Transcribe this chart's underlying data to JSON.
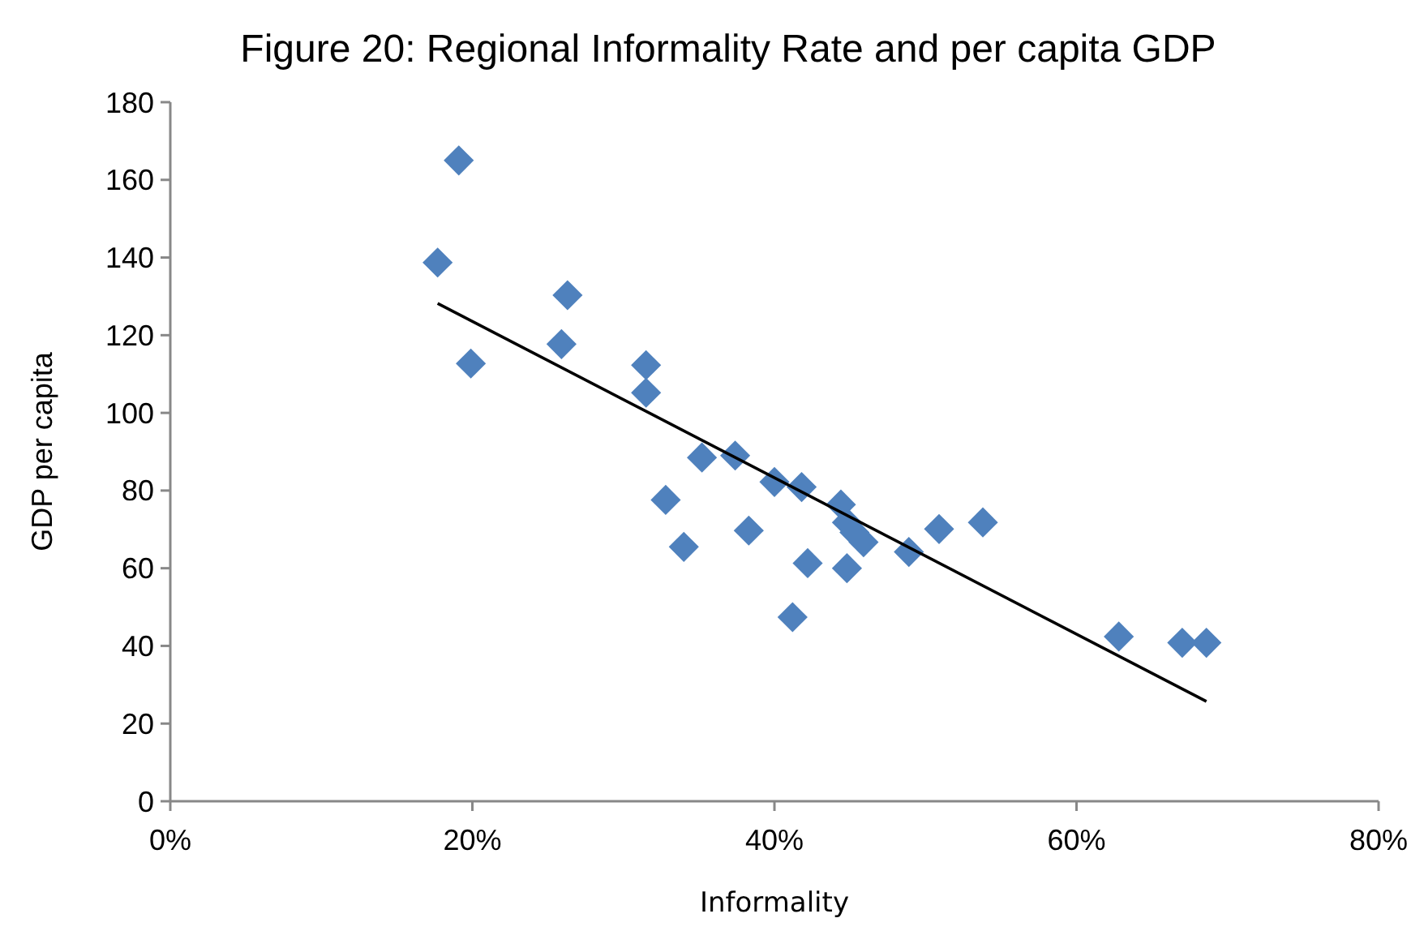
{
  "chart_data": {
    "type": "scatter",
    "title": "Figure 20: Regional Informality Rate and per capita GDP",
    "xlabel": "Informality",
    "ylabel": "GDP per capita",
    "xlim": [
      0,
      0.8
    ],
    "xticks": [
      {
        "value": 0,
        "label": "0%"
      },
      {
        "value": 0.2,
        "label": "20%"
      },
      {
        "value": 0.4,
        "label": "40%"
      },
      {
        "value": 0.6,
        "label": "60%"
      },
      {
        "value": 0.8,
        "label": "80%"
      }
    ],
    "ylim": [
      0,
      180
    ],
    "yticks": [
      0,
      20,
      40,
      60,
      80,
      100,
      120,
      140,
      160,
      180
    ],
    "grid": false,
    "series": [
      {
        "color": "#4f81bd",
        "marker": "diamond",
        "x": [
          0.177,
          0.191,
          0.199,
          0.263,
          0.259,
          0.315,
          0.315,
          0.352,
          0.328,
          0.34,
          0.374,
          0.383,
          0.4,
          0.418,
          0.412,
          0.422,
          0.444,
          0.448,
          0.453,
          0.459,
          0.448,
          0.489,
          0.509,
          0.538,
          0.628,
          0.67,
          0.686
        ],
        "values": [
          138.7,
          165,
          112.7,
          130.3,
          117.7,
          112.3,
          105.2,
          88.5,
          77.6,
          65.5,
          89,
          69.7,
          82.2,
          80.9,
          47.4,
          61.3,
          76.4,
          71.8,
          69.2,
          66.7,
          60,
          64.2,
          70.1,
          71.8,
          42.4,
          40.8,
          40.8
        ]
      },
      {
        "type": "line",
        "color": "#000000",
        "marker": "none",
        "line_style": "solid",
        "x": [
          0.177,
          0.686
        ],
        "values": [
          128.2,
          25.7
        ]
      }
    ]
  }
}
